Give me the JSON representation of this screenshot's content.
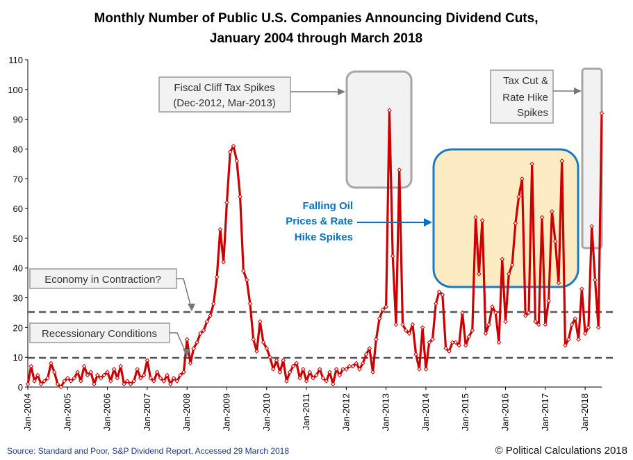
{
  "chart_data": {
    "type": "line",
    "title": "Monthly Number of Public U.S. Companies Announcing Dividend Cuts,",
    "subtitle": "January 2004 through March 2018",
    "xlabel": "",
    "ylabel": "",
    "ylim": [
      0,
      110
    ],
    "yticks": [
      0,
      10,
      20,
      30,
      40,
      50,
      60,
      70,
      80,
      90,
      100,
      110
    ],
    "xticks": [
      "Jan-2004",
      "Jan-2005",
      "Jan-2006",
      "Jan-2007",
      "Jan-2008",
      "Jan-2009",
      "Jan-2010",
      "Jan-2011",
      "Jan-2012",
      "Jan-2013",
      "Jan-2014",
      "Jan-2015",
      "Jan-2016",
      "Jan-2017",
      "Jan-2018"
    ],
    "x_start": "Jan-2004",
    "x_end": "Mar-2018",
    "series": [
      {
        "color": "#cc0000",
        "values": [
          1,
          7,
          2,
          4,
          1,
          2,
          3,
          8,
          5,
          1,
          0,
          2,
          3,
          2,
          3,
          5,
          2,
          7,
          4,
          5,
          1,
          4,
          3,
          4,
          5,
          2,
          6,
          3,
          7,
          1,
          2,
          1,
          2,
          6,
          3,
          4,
          9,
          3,
          2,
          5,
          3,
          2,
          4,
          1,
          3,
          2,
          4,
          5,
          16,
          8,
          13,
          15,
          18,
          19,
          22,
          24,
          28,
          37,
          53,
          42,
          62,
          79,
          81,
          76,
          64,
          39,
          36,
          28,
          16,
          12,
          22,
          15,
          13,
          10,
          6,
          9,
          5,
          9,
          2,
          5,
          7,
          8,
          3,
          6,
          2,
          5,
          3,
          4,
          6,
          3,
          2,
          5,
          1,
          6,
          4,
          6,
          6,
          7,
          7,
          8,
          6,
          8,
          11,
          13,
          5,
          16,
          23,
          26,
          27,
          93,
          44,
          21,
          73,
          21,
          19,
          18,
          21,
          11,
          6,
          20,
          6,
          15,
          16,
          28,
          32,
          31,
          13,
          12,
          15,
          15,
          14,
          25,
          14,
          17,
          19,
          57,
          38,
          56,
          18,
          21,
          27,
          25,
          15,
          43,
          22,
          38,
          41,
          55,
          64,
          70,
          24,
          25,
          75,
          22,
          21,
          57,
          21,
          29,
          59,
          49,
          35,
          76,
          14,
          16,
          21,
          23,
          16,
          33,
          18,
          20,
          54,
          36,
          20,
          92
        ]
      }
    ],
    "reference_lines": [
      {
        "y": 25,
        "label": "Economy in Contraction?"
      },
      {
        "y": 10,
        "label": "Recessionary Conditions"
      }
    ],
    "annotations": {
      "fiscal_cliff_line1": "Fiscal Cliff Tax Spikes",
      "fiscal_cliff_line2": "(Dec-2012, Mar-2013)",
      "oil_line1": "Falling Oil",
      "oil_line2": "Prices & Rate",
      "oil_line3": "Hike Spikes",
      "tax_line1": "Tax Cut &",
      "tax_line2": "Rate Hike",
      "tax_line3": "Spikes"
    },
    "grid": false,
    "legend": "none"
  },
  "footer": {
    "source": "Source:  Standard and Poor,  S&P Dividend  Report,  Accessed 29 March 2018",
    "credit": "© Political Calculations 2018"
  },
  "colors": {
    "line": "#cc0000",
    "marker_fill": "#ffffff",
    "reference_line": "#555555",
    "oil_box_fill": "#fdebc4",
    "oil_box_stroke": "#1a7ac4",
    "gray_box_fill": "#f2f2f2",
    "gray_box_stroke": "#a6a6a6",
    "annotation_blue": "#0a70c0"
  }
}
